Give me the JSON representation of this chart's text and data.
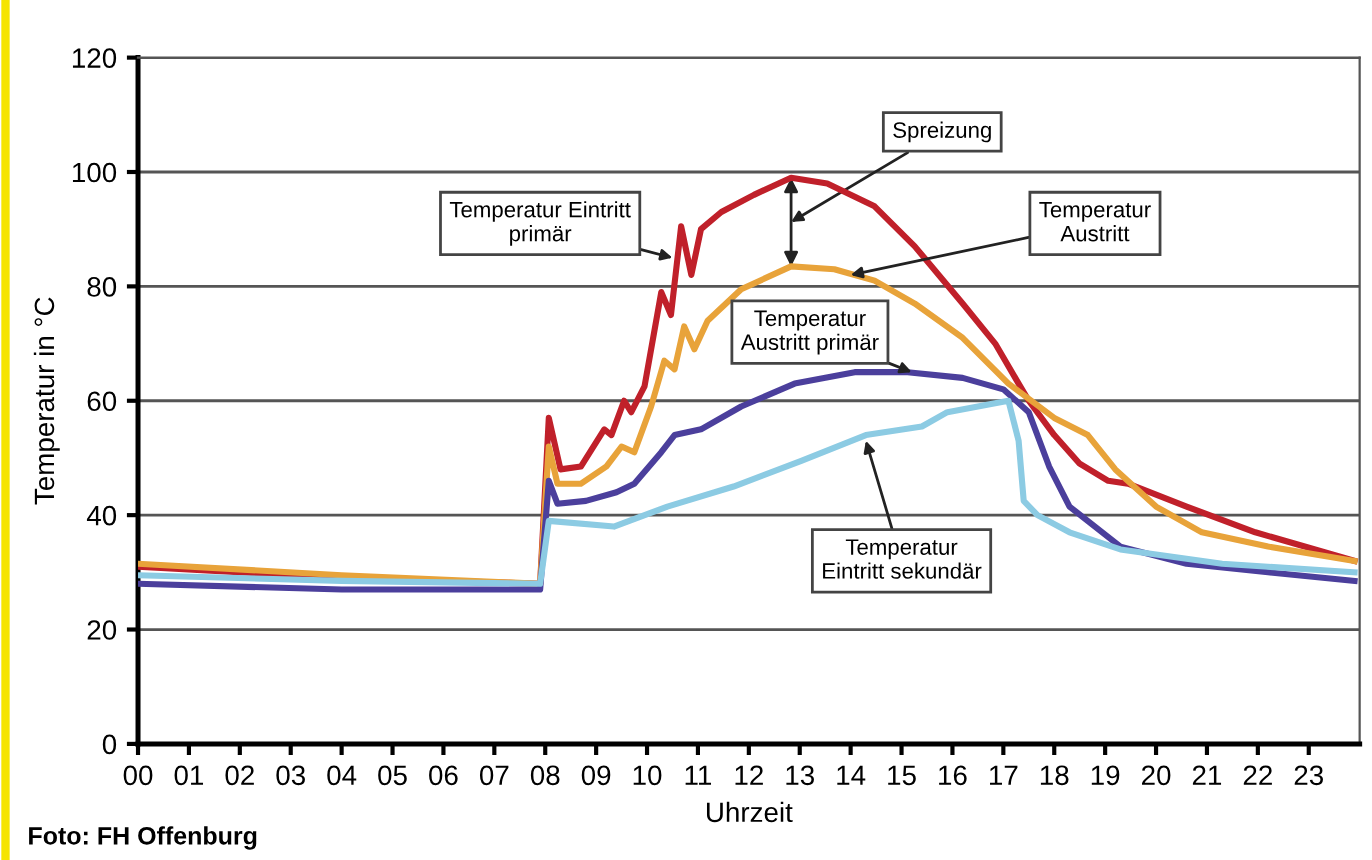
{
  "chart_data": {
    "type": "line",
    "xlabel": "Uhrzeit",
    "ylabel": "Temperatur in °C",
    "xlim": [
      0,
      24
    ],
    "ylim": [
      0,
      120
    ],
    "xticks": [
      {
        "value": 0,
        "label": "00"
      },
      {
        "value": 1,
        "label": "01"
      },
      {
        "value": 2,
        "label": "02"
      },
      {
        "value": 3,
        "label": "03"
      },
      {
        "value": 4,
        "label": "04"
      },
      {
        "value": 5,
        "label": "05"
      },
      {
        "value": 6,
        "label": "06"
      },
      {
        "value": 7,
        "label": "07"
      },
      {
        "value": 8,
        "label": "08"
      },
      {
        "value": 9,
        "label": "09"
      },
      {
        "value": 10,
        "label": "10"
      },
      {
        "value": 11,
        "label": "11"
      },
      {
        "value": 12,
        "label": "12"
      },
      {
        "value": 13,
        "label": "13"
      },
      {
        "value": 14,
        "label": "14"
      },
      {
        "value": 15,
        "label": "15"
      },
      {
        "value": 16,
        "label": "16"
      },
      {
        "value": 17,
        "label": "17"
      },
      {
        "value": 18,
        "label": "18"
      },
      {
        "value": 19,
        "label": "19"
      },
      {
        "value": 20,
        "label": "20"
      },
      {
        "value": 21,
        "label": "21"
      },
      {
        "value": 22,
        "label": "22"
      },
      {
        "value": 23,
        "label": "23"
      }
    ],
    "yticks": [
      0,
      20,
      40,
      60,
      80,
      100,
      120
    ],
    "grid": "y",
    "legend": false,
    "marker": "none",
    "line_style": "solid",
    "series": [
      {
        "color": "#c0202a",
        "x": [
          0,
          4,
          7.9,
          8.07,
          8.3,
          8.7,
          9.16,
          9.3,
          9.55,
          9.69,
          9.95,
          10.28,
          10.47,
          10.67,
          10.87,
          11.06,
          11.46,
          12.1,
          12.83,
          13.54,
          14.47,
          15.26,
          16.2,
          16.84,
          17.3,
          17.5,
          18.0,
          18.5,
          19.06,
          19.45,
          20.6,
          21.95,
          23.9
        ],
        "values": [
          31,
          29,
          28,
          57,
          48,
          48.5,
          55,
          54,
          60,
          58,
          62.5,
          79,
          75,
          90.5,
          82,
          90,
          93,
          96,
          99,
          98,
          94,
          87,
          77,
          70,
          63,
          60,
          54,
          49,
          46,
          45.5,
          41.5,
          37,
          32
        ]
      },
      {
        "color": "#e8a33a",
        "x": [
          0,
          4,
          7.9,
          8.07,
          8.24,
          8.7,
          9.2,
          9.5,
          9.75,
          10.08,
          10.34,
          10.54,
          10.73,
          10.93,
          11.19,
          11.85,
          12.83,
          13.68,
          14.47,
          15.26,
          16.2,
          17.1,
          18.0,
          18.66,
          19.2,
          20.0,
          20.9,
          22.2,
          23.9
        ],
        "values": [
          31.5,
          29.5,
          28,
          52,
          45.5,
          45.5,
          48.5,
          52,
          51,
          59,
          67,
          65.5,
          73,
          69,
          74,
          79.5,
          83.5,
          83,
          81,
          77,
          71,
          63,
          57,
          54,
          48,
          41.5,
          37,
          34.5,
          32
        ]
      },
      {
        "color": "#4b3f9c",
        "x": [
          0,
          4,
          7.9,
          8.07,
          8.24,
          8.8,
          9.4,
          9.75,
          10.28,
          10.54,
          11.06,
          11.85,
          12.9,
          14.08,
          15.12,
          16.2,
          17.0,
          17.5,
          17.9,
          18.3,
          18.8,
          19.3,
          20.6,
          22.2,
          23.9
        ],
        "values": [
          28,
          27,
          27,
          46,
          42,
          42.5,
          44,
          45.5,
          51,
          54,
          55,
          59,
          63,
          65,
          65,
          64,
          62,
          58,
          48.5,
          41.5,
          38,
          34.5,
          31.5,
          30,
          28.5
        ]
      },
      {
        "color": "#8ccbe3",
        "x": [
          0,
          4,
          7.9,
          8.07,
          9.35,
          10.4,
          11.7,
          13.03,
          14.3,
          15.4,
          15.9,
          17.1,
          17.3,
          17.4,
          17.67,
          18.3,
          19.3,
          21.3,
          23.9
        ],
        "values": [
          29.5,
          28.5,
          28,
          39,
          38,
          41.5,
          45,
          49.5,
          54,
          55.5,
          58,
          60,
          53,
          42.5,
          40,
          37,
          34,
          31.5,
          30
        ]
      }
    ],
    "annotations": [
      "Spreizung",
      {
        "text": "Temperatur Eintritt\nprimär",
        "x": 10.5,
        "y": 85
      },
      {
        "text": "Temperatur\nAustritt",
        "x": 14.0,
        "y": 82
      },
      {
        "text": "Temperatur\nAustritt primär",
        "x": 15.2,
        "y": 65
      },
      {
        "text": "Temperatur\nEintritt sekundär",
        "x": 14.3,
        "y": 53
      },
      "Foto: FH Offenburg"
    ]
  }
}
